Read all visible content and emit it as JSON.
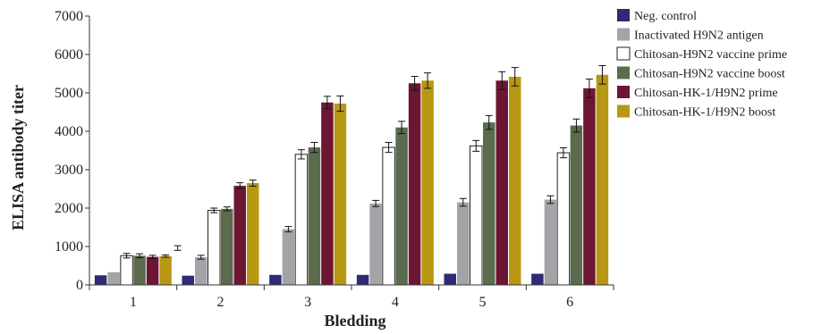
{
  "chart_data": {
    "type": "bar",
    "title": "",
    "xlabel": "Bledding",
    "ylabel": "ELISA antibody titer",
    "ylim": [
      0,
      7000
    ],
    "yticks": [
      0,
      1000,
      2000,
      3000,
      4000,
      5000,
      6000,
      7000
    ],
    "categories": [
      "1",
      "2",
      "3",
      "4",
      "5",
      "6"
    ],
    "grid": false,
    "legend_position": "right",
    "series": [
      {
        "name": "Neg. control",
        "color": "#2e2a78",
        "values": [
          250,
          240,
          260,
          260,
          290,
          290
        ],
        "errors": [
          0,
          0,
          0,
          0,
          0,
          0
        ]
      },
      {
        "name": "Inactivated H9N2 antigen",
        "color": "#a3a3a8",
        "values": [
          330,
          720,
          1450,
          2120,
          2150,
          2220
        ],
        "errors": [
          0,
          50,
          70,
          80,
          100,
          100
        ]
      },
      {
        "name": "Chitosan-H9N2 vaccine prime",
        "color": "#ffffff",
        "values": [
          760,
          1940,
          3400,
          3580,
          3620,
          3440
        ],
        "errors": [
          60,
          60,
          120,
          130,
          140,
          130
        ]
      },
      {
        "name": "Chitosan-H9N2 vaccine boost",
        "color": "#5b6b4e",
        "values": [
          760,
          1980,
          3580,
          4100,
          4230,
          4150
        ],
        "errors": [
          50,
          50,
          130,
          160,
          180,
          170
        ]
      },
      {
        "name": "Chitosan-HK-1/H9N2 prime",
        "color": "#6d1634",
        "values": [
          730,
          2580,
          4750,
          5250,
          5320,
          5120
        ],
        "errors": [
          40,
          80,
          160,
          180,
          230,
          240
        ]
      },
      {
        "name": "Chitosan-HK-1/H9N2 boost",
        "color": "#b89712",
        "values": [
          750,
          2650,
          4720,
          5320,
          5420,
          5470
        ],
        "errors": [
          30,
          80,
          200,
          200,
          240,
          240
        ]
      }
    ],
    "extra_points": [
      {
        "category_gap_after": "1",
        "value": 960,
        "error": 60
      }
    ]
  }
}
